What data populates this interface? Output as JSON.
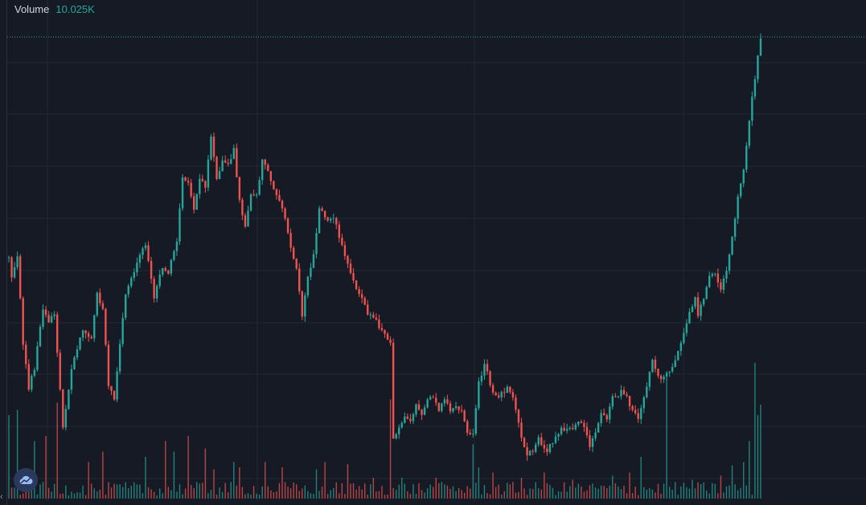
{
  "legend": {
    "label": "Volume",
    "value": "10.025K"
  },
  "colors": {
    "background": "#161a25",
    "grid": "#232836",
    "up": "#26a69a",
    "down": "#ef5350",
    "text": "#d1d4dc",
    "price_line": "#26a69a"
  },
  "icons": {
    "logo": "tradingview-cloud-icon",
    "scroll": "chevron-left-icon"
  },
  "chart_data": {
    "type": "candlestick",
    "grid": true,
    "price_path": [
      [
        0,
        70
      ],
      [
        1,
        62
      ],
      [
        2,
        66
      ],
      [
        3,
        70
      ],
      [
        5,
        40
      ],
      [
        7,
        25
      ],
      [
        9,
        32
      ],
      [
        12,
        52
      ],
      [
        14,
        48
      ],
      [
        16,
        50
      ],
      [
        17,
        37
      ],
      [
        19,
        12
      ],
      [
        21,
        25
      ],
      [
        22,
        32
      ],
      [
        24,
        38
      ],
      [
        26,
        45
      ],
      [
        27,
        44
      ],
      [
        29,
        42
      ],
      [
        31,
        57
      ],
      [
        33,
        52
      ],
      [
        35,
        26
      ],
      [
        37,
        22
      ],
      [
        39,
        40
      ],
      [
        41,
        57
      ],
      [
        42,
        60
      ],
      [
        44,
        64
      ],
      [
        46,
        70
      ],
      [
        48,
        73
      ],
      [
        49,
        68
      ],
      [
        51,
        56
      ],
      [
        52,
        60
      ],
      [
        54,
        66
      ],
      [
        56,
        64
      ],
      [
        57,
        68
      ],
      [
        59,
        74
      ],
      [
        61,
        97
      ],
      [
        63,
        94
      ],
      [
        65,
        86
      ],
      [
        67,
        96
      ],
      [
        69,
        93
      ],
      [
        71,
        110
      ],
      [
        73,
        95
      ],
      [
        75,
        102
      ],
      [
        77,
        100
      ],
      [
        79,
        106
      ],
      [
        81,
        88
      ],
      [
        83,
        80
      ],
      [
        85,
        91
      ],
      [
        87,
        90
      ],
      [
        89,
        102
      ],
      [
        91,
        99
      ],
      [
        92,
        95
      ],
      [
        93,
        92
      ],
      [
        95,
        88
      ],
      [
        97,
        83
      ],
      [
        99,
        72
      ],
      [
        101,
        65
      ],
      [
        103,
        50
      ],
      [
        105,
        62
      ],
      [
        107,
        70
      ],
      [
        109,
        85
      ],
      [
        110,
        85
      ],
      [
        112,
        82
      ],
      [
        114,
        83
      ],
      [
        116,
        76
      ],
      [
        118,
        70
      ],
      [
        120,
        64
      ],
      [
        122,
        58
      ],
      [
        124,
        56
      ],
      [
        126,
        50
      ],
      [
        128,
        49
      ],
      [
        130,
        46
      ],
      [
        132,
        44
      ],
      [
        134,
        40
      ],
      [
        135,
        8
      ],
      [
        137,
        12
      ],
      [
        139,
        15
      ],
      [
        141,
        14
      ],
      [
        143,
        19
      ],
      [
        145,
        16
      ],
      [
        147,
        22
      ],
      [
        149,
        21
      ],
      [
        151,
        18
      ],
      [
        153,
        22
      ],
      [
        155,
        17
      ],
      [
        157,
        19
      ],
      [
        159,
        18
      ],
      [
        161,
        10
      ],
      [
        163,
        9
      ],
      [
        165,
        27
      ],
      [
        167,
        33
      ],
      [
        168,
        30
      ],
      [
        170,
        23
      ],
      [
        171,
        22
      ],
      [
        173,
        23
      ],
      [
        175,
        25
      ],
      [
        177,
        22
      ],
      [
        178,
        18
      ],
      [
        180,
        8
      ],
      [
        182,
        3
      ],
      [
        184,
        4
      ],
      [
        186,
        8
      ],
      [
        188,
        4
      ],
      [
        189,
        3
      ],
      [
        190,
        6
      ],
      [
        192,
        8
      ],
      [
        194,
        11
      ],
      [
        196,
        12
      ],
      [
        198,
        12
      ],
      [
        200,
        14
      ],
      [
        202,
        12
      ],
      [
        204,
        6
      ],
      [
        206,
        10
      ],
      [
        208,
        16
      ],
      [
        210,
        15
      ],
      [
        212,
        22
      ],
      [
        214,
        23
      ],
      [
        215,
        25
      ],
      [
        217,
        22
      ],
      [
        219,
        17
      ],
      [
        221,
        15
      ],
      [
        222,
        18
      ],
      [
        224,
        26
      ],
      [
        226,
        34
      ],
      [
        227,
        31
      ],
      [
        229,
        28
      ],
      [
        231,
        30
      ],
      [
        233,
        32
      ],
      [
        235,
        37
      ],
      [
        237,
        44
      ],
      [
        239,
        50
      ],
      [
        241,
        56
      ],
      [
        242,
        50
      ],
      [
        244,
        55
      ],
      [
        246,
        63
      ],
      [
        248,
        64
      ],
      [
        250,
        59
      ],
      [
        252,
        65
      ],
      [
        254,
        76
      ],
      [
        256,
        89
      ],
      [
        258,
        98
      ],
      [
        260,
        116
      ],
      [
        262,
        130
      ],
      [
        263,
        138
      ],
      [
        264,
        143
      ]
    ],
    "volume_spikes": [
      [
        0,
        0.8
      ],
      [
        3,
        0.85
      ],
      [
        9,
        0.55
      ],
      [
        13,
        0.6
      ],
      [
        17,
        0.92
      ],
      [
        28,
        0.35
      ],
      [
        33,
        0.45
      ],
      [
        48,
        0.4
      ],
      [
        55,
        0.55
      ],
      [
        58,
        0.45
      ],
      [
        63,
        0.6
      ],
      [
        69,
        0.48
      ],
      [
        72,
        0.28
      ],
      [
        79,
        0.35
      ],
      [
        81,
        0.3
      ],
      [
        90,
        0.35
      ],
      [
        96,
        0.3
      ],
      [
        108,
        0.28
      ],
      [
        111,
        0.35
      ],
      [
        119,
        0.33
      ],
      [
        128,
        0.2
      ],
      [
        134,
        0.95
      ],
      [
        138,
        0.2
      ],
      [
        150,
        0.2
      ],
      [
        163,
        0.52
      ],
      [
        165,
        0.3
      ],
      [
        170,
        0.25
      ],
      [
        180,
        0.2
      ],
      [
        188,
        0.25
      ],
      [
        198,
        0.18
      ],
      [
        212,
        0.22
      ],
      [
        218,
        0.25
      ],
      [
        222,
        0.4
      ],
      [
        231,
        1.15
      ],
      [
        240,
        0.18
      ],
      [
        250,
        0.22
      ],
      [
        254,
        0.32
      ],
      [
        258,
        0.35
      ],
      [
        260,
        0.55
      ],
      [
        262,
        1.3
      ],
      [
        263,
        0.8
      ],
      [
        264,
        0.9
      ]
    ]
  }
}
